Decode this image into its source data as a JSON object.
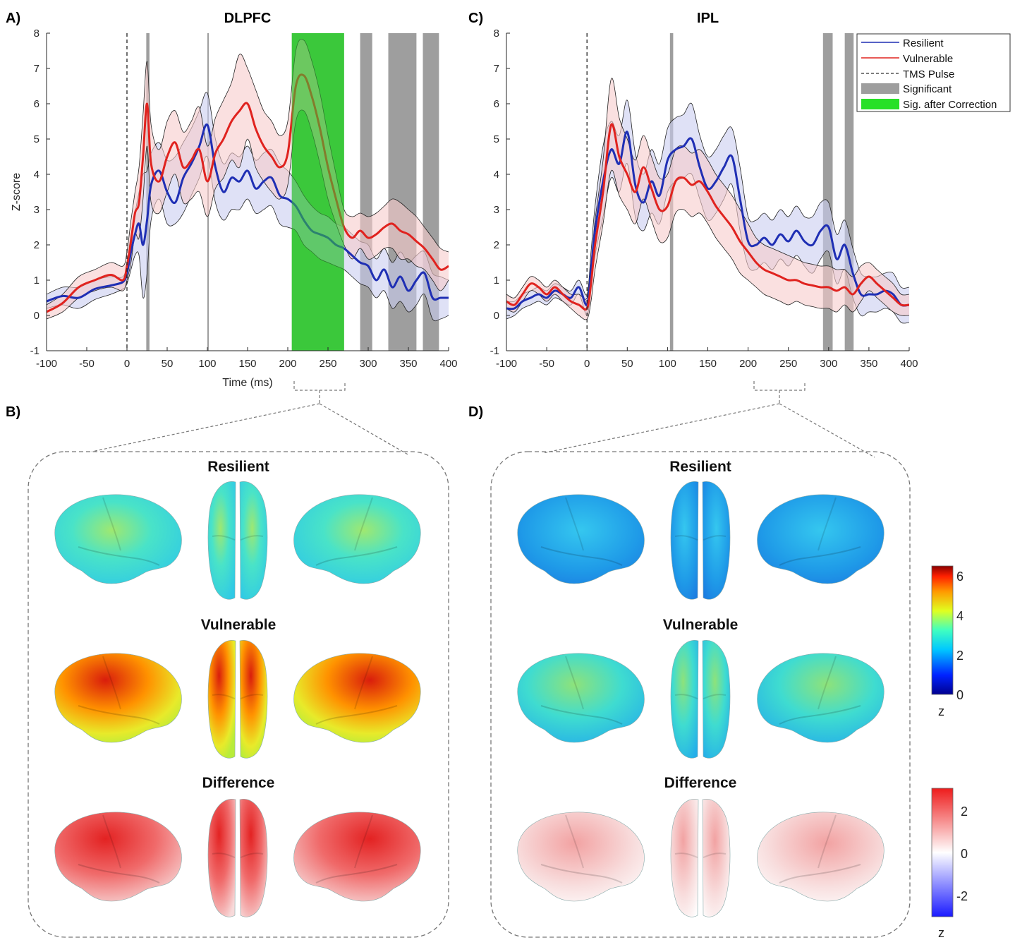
{
  "panel_labels": {
    "a": "A)",
    "b": "B)",
    "c": "C)",
    "d": "D)"
  },
  "legend": {
    "resilient": "Resilient",
    "vulnerable": "Vulnerable",
    "tms": "TMS Pulse",
    "significant": "Significant",
    "corrected": "Sig. after Correction"
  },
  "colors": {
    "resilient": "#1f2fb4",
    "vulnerable": "#e0231f",
    "significant": "#9e9e9e",
    "corrected": "#36c636"
  },
  "brain": {
    "rows": [
      "Resilient",
      "Vulnerable",
      "Difference"
    ]
  },
  "colorbar_z": {
    "label": "z",
    "ticks": [
      "6",
      "4",
      "2",
      "0"
    ]
  },
  "colorbar_diff": {
    "label": "z",
    "ticks": [
      "2",
      "0",
      "-2"
    ]
  },
  "chart_data": [
    {
      "type": "line",
      "title": "DLPFC",
      "xlabel": "Time (ms)",
      "ylabel": "Z-score",
      "xlim": [
        -100,
        400
      ],
      "ylim": [
        -1,
        8
      ],
      "xticks": [
        -100,
        -50,
        0,
        50,
        100,
        150,
        200,
        250,
        300,
        350,
        400
      ],
      "yticks": [
        -1,
        0,
        1,
        2,
        3,
        4,
        5,
        6,
        7,
        8
      ],
      "tms_pulse_at": 0,
      "significant_windows": [
        [
          24,
          28
        ],
        [
          100,
          101
        ],
        [
          290,
          305
        ],
        [
          325,
          360
        ],
        [
          368,
          388
        ]
      ],
      "corrected_windows": [
        [
          205,
          270
        ]
      ],
      "series": [
        {
          "name": "Resilient",
          "x": [
            -100,
            -80,
            -60,
            -40,
            -20,
            -5,
            0,
            5,
            10,
            15,
            20,
            25,
            30,
            40,
            50,
            60,
            70,
            80,
            90,
            100,
            110,
            120,
            130,
            140,
            150,
            160,
            170,
            180,
            190,
            200,
            210,
            220,
            230,
            240,
            250,
            260,
            270,
            280,
            290,
            300,
            310,
            320,
            330,
            340,
            350,
            360,
            370,
            380,
            390,
            400
          ],
          "y": [
            0.4,
            0.55,
            0.5,
            0.75,
            0.85,
            0.95,
            1.2,
            1.8,
            2.3,
            2.6,
            2.0,
            2.7,
            3.7,
            4.1,
            3.5,
            3.2,
            3.9,
            4.3,
            4.8,
            5.4,
            4.2,
            3.5,
            3.9,
            3.8,
            4.1,
            3.6,
            3.8,
            3.9,
            3.4,
            3.3,
            3.1,
            2.7,
            2.4,
            2.3,
            2.2,
            2.0,
            1.9,
            1.7,
            1.5,
            1.4,
            1.0,
            1.3,
            0.8,
            1.1,
            0.7,
            1.0,
            1.2,
            0.5,
            0.5,
            0.5
          ],
          "upper": [
            0.6,
            0.8,
            0.8,
            1.0,
            1.1,
            1.1,
            1.5,
            2.3,
            2.9,
            3.5,
            4.0,
            4.1,
            4.6,
            4.9,
            4.4,
            4.5,
            4.9,
            5.3,
            5.8,
            6.3,
            5.0,
            4.3,
            4.6,
            4.5,
            4.8,
            4.4,
            4.6,
            4.7,
            4.3,
            4.1,
            3.8,
            3.4,
            3.1,
            2.9,
            2.8,
            2.6,
            2.5,
            2.3,
            2.1,
            2.0,
            1.6,
            1.9,
            1.5,
            1.8,
            1.5,
            1.7,
            1.8,
            1.2,
            1.1,
            1.0
          ],
          "lower": [
            0.2,
            0.3,
            0.2,
            0.45,
            0.6,
            0.75,
            0.9,
            1.3,
            1.7,
            1.7,
            0.5,
            1.2,
            2.7,
            3.3,
            2.6,
            2.6,
            2.9,
            3.4,
            3.9,
            4.5,
            3.2,
            2.7,
            3.0,
            3.0,
            3.3,
            2.9,
            3.0,
            3.1,
            2.6,
            2.5,
            2.4,
            2.0,
            1.8,
            1.6,
            1.5,
            1.4,
            1.3,
            1.1,
            0.9,
            0.8,
            0.5,
            0.7,
            0.2,
            0.4,
            0.1,
            0.3,
            0.6,
            -0.1,
            -0.1,
            0.0
          ]
        },
        {
          "name": "Vulnerable",
          "x": [
            -100,
            -80,
            -60,
            -40,
            -20,
            -5,
            0,
            5,
            10,
            15,
            20,
            25,
            30,
            40,
            50,
            60,
            70,
            80,
            90,
            100,
            110,
            120,
            130,
            140,
            150,
            160,
            170,
            180,
            190,
            200,
            210,
            220,
            230,
            240,
            250,
            260,
            270,
            280,
            290,
            300,
            310,
            320,
            330,
            340,
            350,
            360,
            370,
            380,
            390,
            400
          ],
          "y": [
            0.1,
            0.35,
            0.8,
            1.0,
            1.15,
            1.0,
            1.4,
            2.1,
            2.9,
            3.2,
            4.5,
            6.0,
            4.3,
            3.8,
            4.5,
            4.9,
            4.2,
            4.4,
            4.7,
            3.8,
            4.6,
            5.0,
            5.5,
            5.8,
            6.0,
            5.3,
            4.8,
            4.5,
            4.2,
            4.6,
            6.5,
            6.8,
            6.2,
            5.3,
            4.2,
            3.3,
            2.5,
            2.2,
            2.4,
            2.2,
            2.3,
            2.5,
            2.6,
            2.4,
            2.3,
            2.1,
            1.9,
            1.6,
            1.3,
            1.4
          ],
          "upper": [
            0.3,
            0.6,
            1.1,
            1.3,
            1.5,
            1.4,
            1.8,
            2.7,
            3.5,
            4.2,
            5.7,
            7.2,
            5.4,
            4.7,
            5.5,
            5.8,
            5.2,
            5.5,
            5.9,
            4.8,
            5.6,
            6.1,
            6.6,
            7.4,
            7.0,
            6.4,
            5.8,
            5.5,
            5.1,
            5.5,
            7.5,
            7.8,
            7.2,
            6.3,
            5.1,
            4.0,
            3.0,
            2.8,
            2.9,
            2.8,
            2.9,
            3.1,
            3.3,
            3.2,
            3.0,
            2.8,
            2.5,
            2.2,
            1.9,
            1.8
          ],
          "lower": [
            -0.1,
            0.1,
            0.5,
            0.7,
            0.8,
            0.7,
            1.0,
            1.5,
            2.3,
            2.2,
            3.3,
            4.8,
            3.2,
            2.9,
            3.5,
            4.0,
            3.2,
            3.3,
            3.5,
            2.8,
            3.6,
            3.9,
            4.4,
            4.2,
            5.0,
            4.2,
            3.8,
            3.5,
            3.3,
            3.7,
            5.5,
            5.8,
            5.2,
            4.3,
            3.3,
            2.6,
            2.0,
            1.6,
            1.9,
            1.6,
            1.7,
            1.9,
            1.9,
            1.6,
            1.6,
            1.4,
            1.3,
            1.0,
            0.7,
            1.0
          ]
        }
      ]
    },
    {
      "type": "line",
      "title": "IPL",
      "xlabel": "",
      "ylabel": "",
      "xlim": [
        -100,
        400
      ],
      "ylim": [
        -1,
        8
      ],
      "xticks": [
        -100,
        -50,
        0,
        50,
        100,
        150,
        200,
        250,
        300,
        350,
        400
      ],
      "yticks": [
        -1,
        0,
        1,
        2,
        3,
        4,
        5,
        6,
        7,
        8
      ],
      "tms_pulse_at": 0,
      "significant_windows": [
        [
          103,
          107
        ],
        [
          293,
          305
        ],
        [
          320,
          331
        ]
      ],
      "corrected_windows": [],
      "series": [
        {
          "name": "Resilient",
          "x": [
            -100,
            -90,
            -80,
            -70,
            -60,
            -50,
            -40,
            -30,
            -20,
            -10,
            0,
            5,
            10,
            20,
            30,
            40,
            50,
            60,
            70,
            80,
            90,
            100,
            110,
            120,
            130,
            140,
            150,
            160,
            170,
            180,
            190,
            200,
            210,
            220,
            230,
            240,
            250,
            260,
            270,
            280,
            290,
            300,
            310,
            320,
            330,
            340,
            350,
            360,
            370,
            380,
            390,
            400
          ],
          "y": [
            0.2,
            0.2,
            0.4,
            0.5,
            0.6,
            0.5,
            0.7,
            0.6,
            0.5,
            0.8,
            0.3,
            1.3,
            2.4,
            3.8,
            4.7,
            4.3,
            5.2,
            3.7,
            3.2,
            3.8,
            3.4,
            4.4,
            4.7,
            4.8,
            5.0,
            4.2,
            3.6,
            3.8,
            4.2,
            4.5,
            3.3,
            2.1,
            2.0,
            2.2,
            2.0,
            2.3,
            2.1,
            2.4,
            2.1,
            2.0,
            2.4,
            2.5,
            1.6,
            2.0,
            1.2,
            0.6,
            0.6,
            0.6,
            0.7,
            0.6,
            0.3,
            0.3
          ],
          "upper": [
            0.4,
            0.4,
            0.6,
            0.7,
            0.8,
            0.7,
            0.9,
            0.8,
            0.7,
            1.0,
            0.6,
            1.8,
            3.1,
            4.8,
            5.5,
            5.1,
            6.1,
            4.6,
            4.0,
            4.7,
            4.3,
            5.3,
            5.6,
            5.7,
            6.0,
            5.1,
            4.5,
            4.7,
            5.1,
            5.3,
            4.2,
            2.8,
            2.7,
            2.9,
            2.7,
            3.0,
            2.8,
            3.1,
            2.8,
            2.8,
            3.2,
            3.2,
            2.3,
            2.7,
            1.9,
            1.2,
            1.1,
            1.1,
            1.2,
            1.2,
            0.8,
            0.8
          ],
          "lower": [
            -0.1,
            0.0,
            0.2,
            0.3,
            0.4,
            0.3,
            0.5,
            0.4,
            0.3,
            0.6,
            0.0,
            0.8,
            1.7,
            2.8,
            3.9,
            3.5,
            4.3,
            2.8,
            2.4,
            2.9,
            2.6,
            3.5,
            3.8,
            3.9,
            4.0,
            3.3,
            2.7,
            2.9,
            3.3,
            3.7,
            2.4,
            1.4,
            1.3,
            1.5,
            1.3,
            1.6,
            1.4,
            1.7,
            1.4,
            1.2,
            1.6,
            1.8,
            0.9,
            1.3,
            0.5,
            0.0,
            0.1,
            0.1,
            0.2,
            0.1,
            -0.2,
            -0.2
          ]
        },
        {
          "name": "Vulnerable",
          "x": [
            -100,
            -90,
            -80,
            -70,
            -60,
            -50,
            -40,
            -30,
            -20,
            -10,
            0,
            5,
            10,
            20,
            30,
            40,
            50,
            60,
            70,
            80,
            90,
            100,
            110,
            120,
            130,
            140,
            150,
            160,
            170,
            180,
            190,
            200,
            210,
            220,
            230,
            240,
            250,
            260,
            270,
            280,
            290,
            300,
            310,
            320,
            330,
            340,
            350,
            360,
            370,
            380,
            390,
            400
          ],
          "y": [
            0.4,
            0.3,
            0.6,
            0.9,
            0.8,
            0.6,
            0.8,
            0.6,
            0.4,
            0.3,
            0.2,
            0.9,
            2.0,
            3.5,
            5.4,
            4.5,
            4.0,
            3.5,
            4.2,
            3.6,
            3.0,
            3.1,
            3.8,
            3.9,
            3.7,
            3.8,
            3.5,
            3.1,
            2.8,
            2.5,
            2.1,
            1.8,
            1.5,
            1.3,
            1.2,
            1.1,
            1.0,
            1.0,
            0.9,
            0.85,
            0.8,
            0.8,
            0.7,
            0.8,
            0.6,
            0.9,
            1.1,
            0.9,
            0.7,
            0.5,
            0.3,
            0.3
          ],
          "upper": [
            0.6,
            0.5,
            0.8,
            1.1,
            1.0,
            0.8,
            1.0,
            0.8,
            0.6,
            0.6,
            0.5,
            1.4,
            2.7,
            4.4,
            6.7,
            5.6,
            5.0,
            4.4,
            5.1,
            4.5,
            3.9,
            4.0,
            4.7,
            4.8,
            4.6,
            4.7,
            4.4,
            4.0,
            3.7,
            3.4,
            3.0,
            2.6,
            2.2,
            2.0,
            1.9,
            1.8,
            1.7,
            1.6,
            1.5,
            1.45,
            1.4,
            1.4,
            1.3,
            1.3,
            1.1,
            1.4,
            1.5,
            1.3,
            1.1,
            0.9,
            0.6,
            0.6
          ],
          "lower": [
            0.2,
            0.1,
            0.4,
            0.7,
            0.6,
            0.4,
            0.6,
            0.4,
            0.2,
            0.0,
            -0.1,
            0.4,
            1.3,
            2.6,
            4.1,
            3.4,
            3.0,
            2.6,
            3.3,
            2.7,
            2.1,
            2.2,
            2.9,
            3.0,
            2.8,
            2.9,
            2.6,
            2.2,
            1.9,
            1.6,
            1.2,
            1.0,
            0.8,
            0.6,
            0.5,
            0.4,
            0.3,
            0.4,
            0.3,
            0.25,
            0.2,
            0.2,
            0.1,
            0.3,
            0.1,
            0.4,
            0.7,
            0.5,
            0.3,
            0.1,
            0.0,
            0.0
          ]
        }
      ]
    }
  ]
}
